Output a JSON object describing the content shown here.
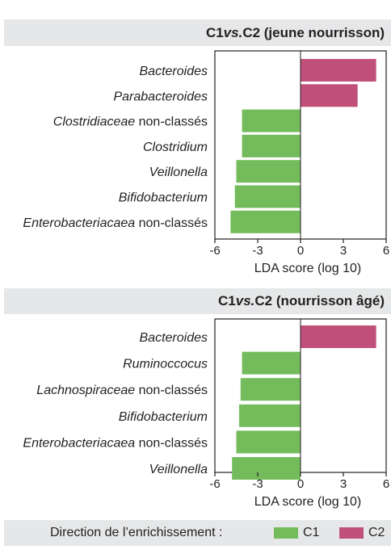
{
  "chart_data": [
    {
      "type": "bar",
      "orientation": "horizontal",
      "title_pre": "C1 ",
      "title_vs": "vs.",
      "title_post": " C2 (jeune nourrisson)",
      "xlabel": "LDA score (log 10)",
      "xlim": [
        -6,
        6
      ],
      "xticks": [
        "-6",
        "-3",
        "0",
        "3",
        "6"
      ],
      "categories": [
        {
          "italic": "Bacteroides",
          "rest": ""
        },
        {
          "italic": "Parabacteroides",
          "rest": ""
        },
        {
          "italic": "Clostridiaceae",
          "rest": " non-classés"
        },
        {
          "italic": "Clostridium",
          "rest": ""
        },
        {
          "italic": "Veillonella",
          "rest": ""
        },
        {
          "italic": "Bifidobacterium",
          "rest": ""
        },
        {
          "italic": "Enterobacteriacaea",
          "rest": " non-classés"
        }
      ],
      "values": [
        5.3,
        4.0,
        -4.1,
        -4.1,
        -4.5,
        -4.6,
        -4.9
      ],
      "groups": [
        "C2",
        "C2",
        "C1",
        "C1",
        "C1",
        "C1",
        "C1"
      ]
    },
    {
      "type": "bar",
      "orientation": "horizontal",
      "title_pre": "C1 ",
      "title_vs": "vs.",
      "title_post": " C2 (nourrisson âgé)",
      "xlabel": "LDA score (log 10)",
      "xlim": [
        -6,
        6
      ],
      "xticks": [
        "-6",
        "-3",
        "0",
        "3",
        "6"
      ],
      "categories": [
        {
          "italic": "Bacteroides",
          "rest": ""
        },
        {
          "italic": "Ruminoccocus",
          "rest": ""
        },
        {
          "italic": "Lachnospiraceae",
          "rest": " non-classés"
        },
        {
          "italic": "Bifidobacterium",
          "rest": ""
        },
        {
          "italic": "Enterobacteriacaea",
          "rest": " non-classés"
        },
        {
          "italic": "Veillonella",
          "rest": ""
        }
      ],
      "values": [
        5.3,
        -4.1,
        -4.2,
        -4.3,
        -4.5,
        -4.8
      ],
      "groups": [
        "C2",
        "C1",
        "C1",
        "C1",
        "C1",
        "C1"
      ]
    }
  ],
  "legend": {
    "label": "Direction de l’enrichissement :",
    "items": [
      {
        "name": "C1",
        "color": "#74bb5c"
      },
      {
        "name": "C2",
        "color": "#c0507a"
      }
    ]
  },
  "colors": {
    "C1": "#74bb5c",
    "C2": "#c0507a",
    "band": "#e6e7e8",
    "axis": "#231f20"
  }
}
